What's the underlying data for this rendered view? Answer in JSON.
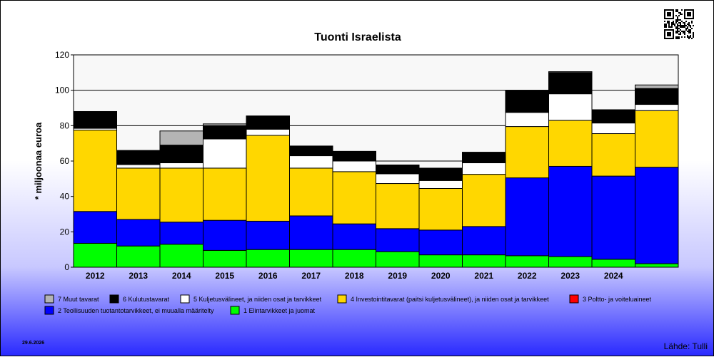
{
  "chart_data": {
    "type": "bar",
    "stacked": true,
    "title": "Tuonti Israelista",
    "ylabel": "* miljoonaa euroa",
    "xlabel": "",
    "ylim": [
      0,
      120
    ],
    "yticks": [
      0,
      20,
      40,
      60,
      80,
      100,
      120
    ],
    "grid": true,
    "legend_position": "bottom",
    "categories": [
      "2012",
      "2013",
      "2014",
      "2015",
      "2016",
      "2017",
      "2018",
      "2019",
      "2020",
      "2021",
      "2022",
      "2023",
      "2024",
      ""
    ],
    "series": [
      {
        "name": "1 Elintarvikkeet ja juomat",
        "color": "#00ff00",
        "values": [
          13.5,
          12,
          13,
          9.5,
          10,
          10,
          10,
          8.8,
          7,
          7,
          6.5,
          6,
          4.5,
          2
        ]
      },
      {
        "name": "2 Teollisuuden tuotantotarvikkeet, ei muualla määritelty",
        "color": "#0000ff",
        "values": [
          18,
          15,
          12.5,
          17,
          16,
          19,
          14.5,
          13,
          14,
          16,
          44,
          51,
          47,
          54.5
        ]
      },
      {
        "name": "3 Poltto- ja voiteluaineet",
        "color": "#ff0000",
        "values": [
          0,
          0,
          0,
          0,
          0,
          0,
          0,
          0,
          0,
          0,
          0,
          0,
          0,
          0
        ]
      },
      {
        "name": "4 Investointitavarat (paitsi kuljetusvälineet), ja niiden osat ja tarvikkeet",
        "color": "#ffd700",
        "values": [
          46,
          29,
          30.5,
          29.5,
          48.5,
          27,
          29.5,
          25.5,
          23.5,
          29.5,
          29,
          26,
          24,
          32
        ]
      },
      {
        "name": "5 Kuljetusvälineet, ja niiden osat ja tarvikkeet",
        "color": "#ffffff",
        "values": [
          1,
          2,
          3,
          16.5,
          3.5,
          7,
          6,
          5.5,
          4.5,
          6.5,
          8,
          15,
          6,
          3.5
        ]
      },
      {
        "name": "6 Kulutustavarat",
        "color": "#000000",
        "values": [
          9.5,
          8,
          10,
          7.5,
          7.5,
          5.5,
          5.5,
          5,
          7,
          6,
          12.5,
          12,
          7.5,
          9
        ]
      },
      {
        "name": "7 Muut tavarat",
        "color": "#b4b4b4",
        "values": [
          0,
          0,
          8,
          1,
          0,
          0,
          0,
          0,
          0,
          0,
          0,
          0.5,
          0,
          2
        ]
      }
    ],
    "date_label": "29.6.2026",
    "source_label": "Lähde: Tulli"
  },
  "legend_order": [
    6,
    5,
    4,
    3,
    2,
    1,
    0
  ],
  "qr_icon": "qr-code-icon"
}
